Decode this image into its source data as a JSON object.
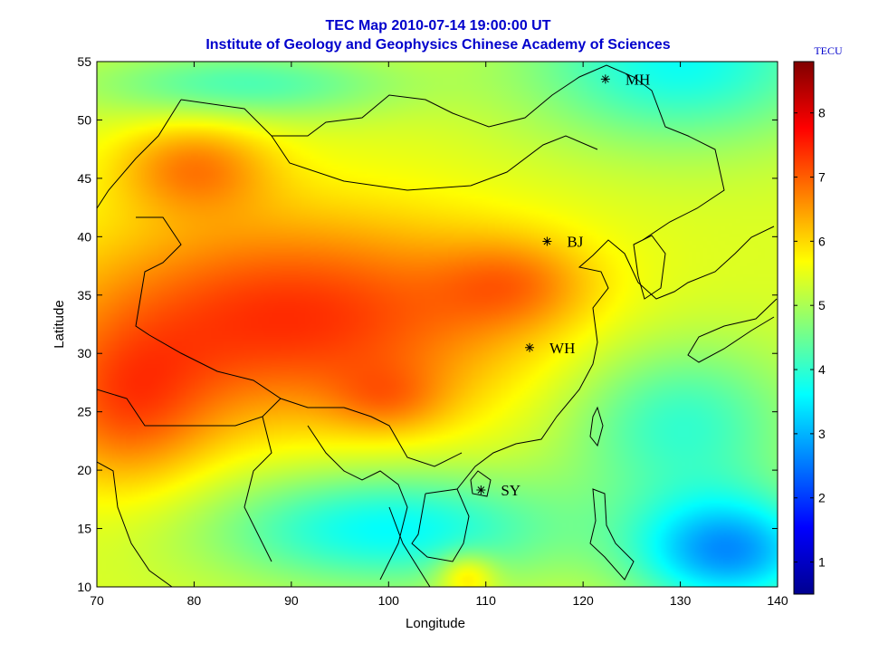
{
  "chart_data": {
    "type": "heatmap",
    "title": "TEC Map 2010-07-14 19:00:00 UT",
    "subtitle": "Institute of Geology and Geophysics Chinese Academy of Sciences",
    "xlabel": "Longitude",
    "ylabel": "Latitude",
    "xlim": [
      70,
      140
    ],
    "ylim": [
      10,
      55
    ],
    "xticks": [
      "70",
      "80",
      "90",
      "100",
      "110",
      "120",
      "130",
      "140"
    ],
    "yticks": [
      "10",
      "15",
      "20",
      "25",
      "30",
      "35",
      "40",
      "45",
      "50",
      "55"
    ],
    "colorbar": {
      "label": "TECU",
      "range": [
        0.5,
        8.8
      ],
      "ticks": [
        "1",
        "2",
        "3",
        "4",
        "5",
        "6",
        "7",
        "8"
      ],
      "colormap": "jet"
    },
    "stations": [
      {
        "name": "MH",
        "lon": 122.3,
        "lat": 53.5
      },
      {
        "name": "BJ",
        "lon": 116.3,
        "lat": 39.6
      },
      {
        "name": "WH",
        "lon": 114.5,
        "lat": 30.5
      },
      {
        "name": "SY",
        "lon": 109.5,
        "lat": 18.3
      }
    ],
    "grid": false
  }
}
